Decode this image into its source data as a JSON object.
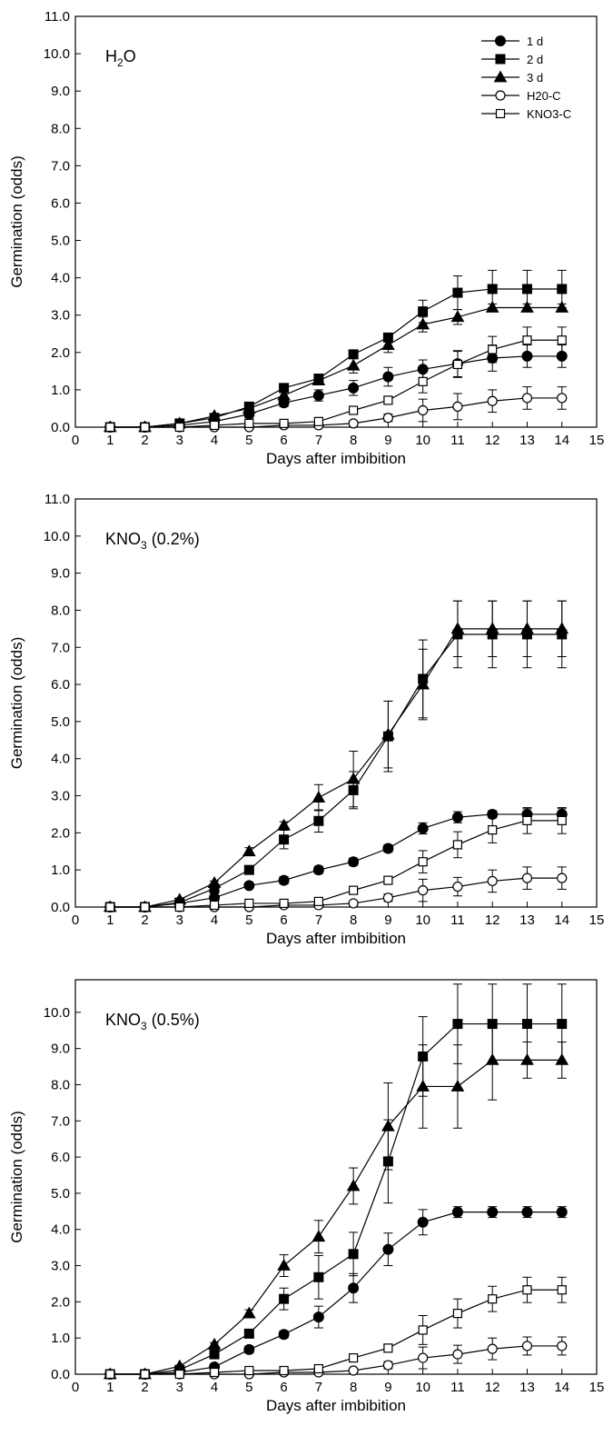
{
  "chart_data": [
    {
      "type": "line",
      "panel_label": "H",
      "panel_label_sub": "2",
      "panel_label_rest": "O",
      "xlabel": "Days after imbibition",
      "ylabel": "Germination (odds)",
      "xlim": [
        0,
        15
      ],
      "ylim": [
        0,
        11
      ],
      "xticks": [
        "0",
        "1",
        "2",
        "3",
        "4",
        "5",
        "6",
        "7",
        "8",
        "9",
        "10",
        "11",
        "12",
        "13",
        "14",
        "15"
      ],
      "yticks": [
        "0.0",
        "1.0",
        "2.0",
        "3.0",
        "4.0",
        "5.0",
        "6.0",
        "7.0",
        "8.0",
        "9.0",
        "10.0",
        "11.0"
      ],
      "legend": "top-right",
      "x": [
        1,
        2,
        3,
        4,
        5,
        6,
        7,
        8,
        9,
        10,
        11,
        12,
        13,
        14
      ],
      "series": [
        {
          "name": "1 d",
          "marker": "circle-filled",
          "values": [
            0,
            0,
            0.05,
            0.15,
            0.35,
            0.65,
            0.85,
            1.05,
            1.35,
            1.55,
            1.7,
            1.85,
            1.9,
            1.9
          ],
          "errors": [
            0,
            0,
            0,
            0.05,
            0.1,
            0.1,
            0.15,
            0.2,
            0.25,
            0.25,
            0.35,
            0.35,
            0.3,
            0.3
          ]
        },
        {
          "name": "2 d",
          "marker": "square-filled",
          "values": [
            0,
            0,
            0.1,
            0.25,
            0.55,
            1.05,
            1.3,
            1.95,
            2.4,
            3.1,
            3.6,
            3.7,
            3.7,
            3.7
          ],
          "errors": [
            0,
            0,
            0,
            0.05,
            0.1,
            0.1,
            0.1,
            0.1,
            0.1,
            0.3,
            0.45,
            0.5,
            0.5,
            0.5
          ]
        },
        {
          "name": "3 d",
          "marker": "triangle-filled",
          "values": [
            0,
            0,
            0.1,
            0.3,
            0.5,
            0.85,
            1.25,
            1.65,
            2.2,
            2.75,
            2.95,
            3.2,
            3.2,
            3.2
          ],
          "errors": [
            0,
            0,
            0,
            0.05,
            0.1,
            0.1,
            0.1,
            0.2,
            0.2,
            0.2,
            0.2,
            0.1,
            0.1,
            0.1
          ]
        },
        {
          "name": "H20-C",
          "marker": "circle-open",
          "values": [
            0,
            0,
            0,
            0,
            0,
            0.05,
            0.05,
            0.1,
            0.25,
            0.45,
            0.55,
            0.7,
            0.78,
            0.78
          ],
          "errors": [
            0,
            0,
            0,
            0,
            0,
            0,
            0,
            0.05,
            0.1,
            0.3,
            0.35,
            0.3,
            0.3,
            0.3
          ]
        },
        {
          "name": "KNO3-C",
          "marker": "square-open",
          "values": [
            0,
            0,
            0,
            0.05,
            0.1,
            0.1,
            0.15,
            0.45,
            0.72,
            1.22,
            1.68,
            2.08,
            2.33,
            2.33
          ],
          "errors": [
            0,
            0,
            0,
            0,
            0,
            0,
            0,
            0.05,
            0.1,
            0.3,
            0.35,
            0.35,
            0.35,
            0.35
          ]
        }
      ]
    },
    {
      "type": "line",
      "panel_label": "KNO",
      "panel_label_sub": "3",
      "panel_label_rest": " (0.2%)",
      "xlabel": "Days after imbibition",
      "ylabel": "Germination (odds)",
      "xlim": [
        0,
        15
      ],
      "ylim": [
        0,
        11
      ],
      "xticks": [
        "0",
        "1",
        "2",
        "3",
        "4",
        "5",
        "6",
        "7",
        "8",
        "9",
        "10",
        "11",
        "12",
        "13",
        "14",
        "15"
      ],
      "yticks": [
        "0.0",
        "1.0",
        "2.0",
        "3.0",
        "4.0",
        "5.0",
        "6.0",
        "7.0",
        "8.0",
        "9.0",
        "10.0",
        "11.0"
      ],
      "x": [
        1,
        2,
        3,
        4,
        5,
        6,
        7,
        8,
        9,
        10,
        11,
        12,
        13,
        14
      ],
      "series": [
        {
          "name": "1 d",
          "marker": "circle-filled",
          "values": [
            0,
            0,
            0.1,
            0.25,
            0.58,
            0.72,
            1.0,
            1.22,
            1.58,
            2.12,
            2.42,
            2.5,
            2.5,
            2.5
          ],
          "errors": [
            0,
            0,
            0,
            0.05,
            0.05,
            0.1,
            0.1,
            0.1,
            0.1,
            0.15,
            0.15,
            0.1,
            0.15,
            0.15
          ]
        },
        {
          "name": "2 d",
          "marker": "square-filled",
          "values": [
            0,
            0,
            0.12,
            0.5,
            1.0,
            1.82,
            2.32,
            3.15,
            4.6,
            6.15,
            7.35,
            7.35,
            7.35,
            7.35
          ],
          "errors": [
            0,
            0,
            0,
            0.05,
            0.1,
            0.25,
            0.3,
            0.5,
            0.95,
            1.05,
            0.9,
            0.9,
            0.9,
            0.9
          ]
        },
        {
          "name": "3 d",
          "marker": "triangle-filled",
          "values": [
            0,
            0,
            0.2,
            0.65,
            1.5,
            2.2,
            2.95,
            3.45,
            4.65,
            6.0,
            7.5,
            7.5,
            7.5,
            7.5
          ],
          "errors": [
            0,
            0,
            0,
            0.05,
            0.1,
            0.1,
            0.35,
            0.75,
            0.9,
            0.95,
            0.75,
            0.75,
            0.75,
            0.75
          ]
        },
        {
          "name": "H20-C",
          "marker": "circle-open",
          "values": [
            0,
            0,
            0,
            0,
            0,
            0.05,
            0.05,
            0.1,
            0.25,
            0.45,
            0.55,
            0.7,
            0.78,
            0.78
          ],
          "errors": [
            0,
            0,
            0,
            0,
            0,
            0,
            0,
            0.05,
            0.1,
            0.3,
            0.25,
            0.3,
            0.3,
            0.3
          ]
        },
        {
          "name": "KNO3-C",
          "marker": "square-open",
          "values": [
            0,
            0,
            0,
            0.05,
            0.1,
            0.1,
            0.15,
            0.45,
            0.72,
            1.22,
            1.68,
            2.08,
            2.33,
            2.33
          ],
          "errors": [
            0,
            0,
            0,
            0,
            0,
            0,
            0,
            0.05,
            0.1,
            0.3,
            0.35,
            0.35,
            0.35,
            0.35
          ]
        }
      ]
    },
    {
      "type": "line",
      "panel_label": "KNO",
      "panel_label_sub": "3",
      "panel_label_rest": " (0.5%)",
      "xlabel": "Days after imbibition",
      "ylabel": "Germination (odds)",
      "xlim": [
        0,
        15
      ],
      "ylim": [
        0,
        10.9
      ],
      "xticks": [
        "0",
        "1",
        "2",
        "3",
        "4",
        "5",
        "6",
        "7",
        "8",
        "9",
        "10",
        "11",
        "12",
        "13",
        "14",
        "15"
      ],
      "yticks": [
        "0.0",
        "1.0",
        "2.0",
        "3.0",
        "4.0",
        "5.0",
        "6.0",
        "7.0",
        "8.0",
        "9.0",
        "10.0"
      ],
      "x": [
        1,
        2,
        3,
        4,
        5,
        6,
        7,
        8,
        9,
        10,
        11,
        12,
        13,
        14
      ],
      "series": [
        {
          "name": "1 d",
          "marker": "circle-filled",
          "values": [
            0,
            0,
            0.05,
            0.2,
            0.68,
            1.1,
            1.58,
            2.38,
            3.45,
            4.2,
            4.48,
            4.48,
            4.48,
            4.48
          ],
          "errors": [
            0,
            0,
            0,
            0.05,
            0.1,
            0.1,
            0.3,
            0.4,
            0.45,
            0.35,
            0.15,
            0.15,
            0.15,
            0.15
          ]
        },
        {
          "name": "2 d",
          "marker": "square-filled",
          "values": [
            0,
            0,
            0.12,
            0.55,
            1.12,
            2.08,
            2.68,
            3.32,
            5.88,
            8.78,
            9.68,
            9.68,
            9.68,
            9.68
          ],
          "errors": [
            0,
            0,
            0,
            0.05,
            0.1,
            0.3,
            0.6,
            0.6,
            1.15,
            1.1,
            1.1,
            1.1,
            1.1,
            1.1
          ]
        },
        {
          "name": "3 d",
          "marker": "triangle-filled",
          "values": [
            0,
            0,
            0.22,
            0.82,
            1.68,
            3.0,
            3.8,
            5.2,
            6.85,
            7.95,
            7.95,
            8.68,
            8.68,
            8.68
          ],
          "errors": [
            0,
            0,
            0,
            0.05,
            0.1,
            0.3,
            0.45,
            0.5,
            1.2,
            1.15,
            1.15,
            1.1,
            0.5,
            0.5
          ]
        },
        {
          "name": "H20-C",
          "marker": "circle-open",
          "values": [
            0,
            0,
            0,
            0,
            0,
            0.05,
            0.05,
            0.1,
            0.25,
            0.45,
            0.55,
            0.7,
            0.78,
            0.78
          ],
          "errors": [
            0,
            0,
            0,
            0,
            0,
            0,
            0,
            0.05,
            0.1,
            0.3,
            0.25,
            0.3,
            0.25,
            0.25
          ]
        },
        {
          "name": "KNO3-C",
          "marker": "square-open",
          "values": [
            0,
            0,
            0,
            0.05,
            0.1,
            0.1,
            0.15,
            0.45,
            0.72,
            1.22,
            1.68,
            2.08,
            2.33,
            2.33
          ],
          "errors": [
            0,
            0,
            0,
            0,
            0,
            0,
            0,
            0.05,
            0.1,
            0.4,
            0.4,
            0.35,
            0.35,
            0.35
          ]
        }
      ]
    }
  ]
}
